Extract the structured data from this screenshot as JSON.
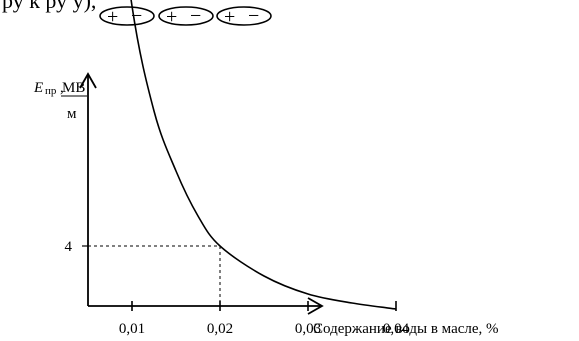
{
  "header_fragment": "ру к ру у),",
  "dipoles": [
    {
      "plus": "+",
      "minus": "−"
    },
    {
      "plus": "+",
      "minus": "−"
    },
    {
      "plus": "+",
      "minus": "−"
    }
  ],
  "chart_data": {
    "type": "line",
    "title": "",
    "xlabel": "Содержание воды в масле, %",
    "ylabel": {
      "symbol": "E",
      "subscript": "пр",
      "separator": ",",
      "unit_numerator": "МВ",
      "unit_denominator": "м"
    },
    "x_ticks": [
      "0,01",
      "0,02",
      "0,03",
      "0,04"
    ],
    "x_tick_values": [
      0.01,
      0.02,
      0.03,
      0.04
    ],
    "y_ticks": [
      "4"
    ],
    "y_tick_values": [
      4
    ],
    "xlim": [
      0.005,
      0.0415
    ],
    "ylim": [
      2,
      19.5
    ],
    "series": [
      {
        "x": [
          0.0075,
          0.01,
          0.0125,
          0.015,
          0.0175,
          0.02,
          0.025,
          0.03,
          0.035,
          0.04
        ],
        "y": [
          18.2,
          12.0,
          8.5,
          6.5,
          5.0,
          4.0,
          3.0,
          2.4,
          2.1,
          1.9
        ]
      }
    ],
    "reference_point": {
      "x": 0.02,
      "y": 4
    },
    "grid": false
  }
}
